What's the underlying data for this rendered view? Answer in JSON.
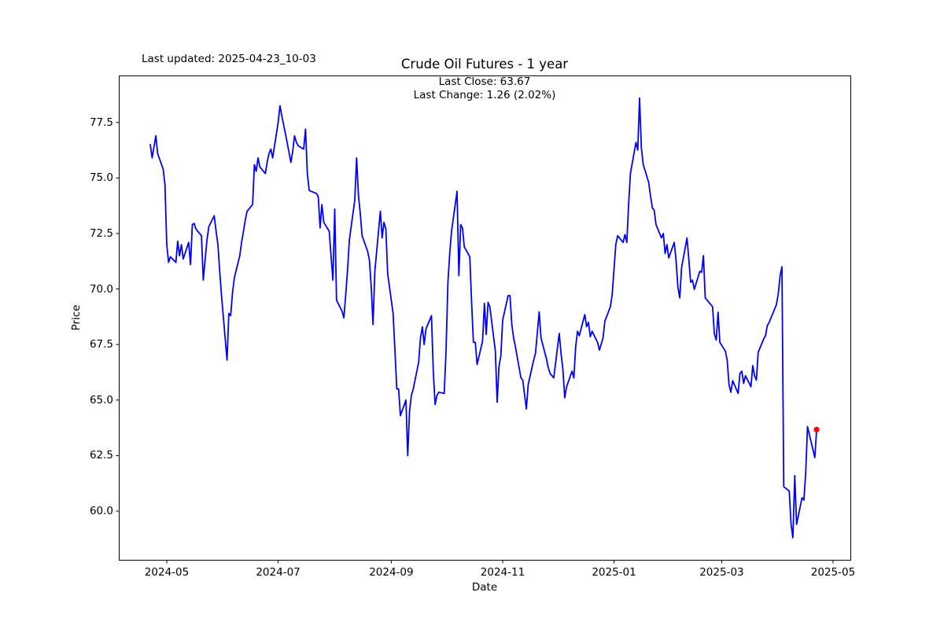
{
  "figure": {
    "last_updated": "Last updated: 2025-04-23_10-03",
    "background": "#ffffff"
  },
  "chart_data": {
    "type": "line",
    "title": "Crude Oil Futures - 1 year",
    "annotation": {
      "line1": "Last Close: 63.67",
      "line2": "Last Change: 1.26 (2.02%)"
    },
    "last_close": 63.67,
    "last_change": 1.26,
    "last_change_pct": "2.02%",
    "xlabel": "Date",
    "ylabel": "Price",
    "grid": false,
    "legend": null,
    "line_color": "#0000ff",
    "marker_color": "#ff0000",
    "axis_color": "#000000",
    "ylim": [
      57.8,
      79.6
    ],
    "yticks": [
      "60.0",
      "62.5",
      "65.0",
      "67.5",
      "70.0",
      "72.5",
      "75.0",
      "77.5"
    ],
    "xticks": [
      {
        "label": "2024-05",
        "date": "2024-05-01"
      },
      {
        "label": "2024-07",
        "date": "2024-07-01"
      },
      {
        "label": "2024-09",
        "date": "2024-09-01"
      },
      {
        "label": "2024-11",
        "date": "2024-11-01"
      },
      {
        "label": "2025-01",
        "date": "2025-01-01"
      },
      {
        "label": "2025-03",
        "date": "2025-03-01"
      },
      {
        "label": "2025-05",
        "date": "2025-05-01"
      }
    ],
    "series": [
      {
        "name": "price",
        "points": [
          [
            "2024-04-22",
            76.5
          ],
          [
            "2024-04-23",
            75.9
          ],
          [
            "2024-04-25",
            76.9
          ],
          [
            "2024-04-26",
            76.1
          ],
          [
            "2024-04-29",
            75.4
          ],
          [
            "2024-04-30",
            74.7
          ],
          [
            "2024-05-01",
            72.0
          ],
          [
            "2024-05-02",
            71.2
          ],
          [
            "2024-05-03",
            71.45
          ],
          [
            "2024-05-06",
            71.2
          ],
          [
            "2024-05-07",
            72.15
          ],
          [
            "2024-05-08",
            71.5
          ],
          [
            "2024-05-09",
            72.0
          ],
          [
            "2024-05-10",
            71.35
          ],
          [
            "2024-05-13",
            72.1
          ],
          [
            "2024-05-14",
            71.1
          ],
          [
            "2024-05-15",
            72.9
          ],
          [
            "2024-05-16",
            72.95
          ],
          [
            "2024-05-17",
            72.7
          ],
          [
            "2024-05-20",
            72.4
          ],
          [
            "2024-05-21",
            70.4
          ],
          [
            "2024-05-22",
            71.3
          ],
          [
            "2024-05-23",
            72.2
          ],
          [
            "2024-05-24",
            72.8
          ],
          [
            "2024-05-27",
            73.3
          ],
          [
            "2024-05-28",
            72.6
          ],
          [
            "2024-05-29",
            72.0
          ],
          [
            "2024-05-30",
            70.8
          ],
          [
            "2024-05-31",
            69.7
          ],
          [
            "2024-06-03",
            66.8
          ],
          [
            "2024-06-04",
            68.9
          ],
          [
            "2024-06-05",
            68.8
          ],
          [
            "2024-06-06",
            69.8
          ],
          [
            "2024-06-07",
            70.5
          ],
          [
            "2024-06-10",
            71.5
          ],
          [
            "2024-06-11",
            72.1
          ],
          [
            "2024-06-12",
            72.6
          ],
          [
            "2024-06-13",
            73.1
          ],
          [
            "2024-06-14",
            73.5
          ],
          [
            "2024-06-17",
            73.8
          ],
          [
            "2024-06-18",
            75.6
          ],
          [
            "2024-06-19",
            75.3
          ],
          [
            "2024-06-20",
            75.9
          ],
          [
            "2024-06-21",
            75.5
          ],
          [
            "2024-06-24",
            75.2
          ],
          [
            "2024-06-25",
            75.7
          ],
          [
            "2024-06-26",
            76.1
          ],
          [
            "2024-06-27",
            76.3
          ],
          [
            "2024-06-28",
            75.9
          ],
          [
            "2024-07-01",
            77.5
          ],
          [
            "2024-07-02",
            78.25
          ],
          [
            "2024-07-03",
            77.8
          ],
          [
            "2024-07-05",
            77.0
          ],
          [
            "2024-07-08",
            75.7
          ],
          [
            "2024-07-09",
            76.2
          ],
          [
            "2024-07-10",
            76.9
          ],
          [
            "2024-07-11",
            76.6
          ],
          [
            "2024-07-12",
            76.45
          ],
          [
            "2024-07-15",
            76.3
          ],
          [
            "2024-07-16",
            77.2
          ],
          [
            "2024-07-17",
            75.2
          ],
          [
            "2024-07-18",
            74.45
          ],
          [
            "2024-07-19",
            74.4
          ],
          [
            "2024-07-22",
            74.3
          ],
          [
            "2024-07-23",
            74.15
          ],
          [
            "2024-07-24",
            72.75
          ],
          [
            "2024-07-25",
            73.8
          ],
          [
            "2024-07-26",
            73.0
          ],
          [
            "2024-07-29",
            72.6
          ],
          [
            "2024-07-30",
            71.5
          ],
          [
            "2024-07-31",
            70.4
          ],
          [
            "2024-08-01",
            73.6
          ],
          [
            "2024-08-02",
            69.5
          ],
          [
            "2024-08-05",
            69.0
          ],
          [
            "2024-08-06",
            68.7
          ],
          [
            "2024-08-07",
            69.7
          ],
          [
            "2024-08-08",
            70.8
          ],
          [
            "2024-08-09",
            72.2
          ],
          [
            "2024-08-12",
            74.0
          ],
          [
            "2024-08-13",
            75.9
          ],
          [
            "2024-08-14",
            74.2
          ],
          [
            "2024-08-15",
            73.4
          ],
          [
            "2024-08-16",
            72.4
          ],
          [
            "2024-08-19",
            71.7
          ],
          [
            "2024-08-20",
            71.3
          ],
          [
            "2024-08-21",
            70.1
          ],
          [
            "2024-08-22",
            68.4
          ],
          [
            "2024-08-23",
            70.8
          ],
          [
            "2024-08-26",
            73.5
          ],
          [
            "2024-08-27",
            72.3
          ],
          [
            "2024-08-28",
            73.0
          ],
          [
            "2024-08-29",
            72.7
          ],
          [
            "2024-08-30",
            70.7
          ],
          [
            "2024-09-02",
            68.9
          ],
          [
            "2024-09-03",
            67.2
          ],
          [
            "2024-09-04",
            65.5
          ],
          [
            "2024-09-05",
            65.5
          ],
          [
            "2024-09-06",
            64.3
          ],
          [
            "2024-09-09",
            65.0
          ],
          [
            "2024-09-10",
            62.5
          ],
          [
            "2024-09-11",
            64.5
          ],
          [
            "2024-09-12",
            65.2
          ],
          [
            "2024-09-13",
            65.5
          ],
          [
            "2024-09-16",
            66.7
          ],
          [
            "2024-09-17",
            67.8
          ],
          [
            "2024-09-18",
            68.3
          ],
          [
            "2024-09-19",
            67.5
          ],
          [
            "2024-09-20",
            68.2
          ],
          [
            "2024-09-23",
            68.8
          ],
          [
            "2024-09-24",
            66.3
          ],
          [
            "2024-09-25",
            64.8
          ],
          [
            "2024-09-26",
            65.2
          ],
          [
            "2024-09-27",
            65.35
          ],
          [
            "2024-09-30",
            65.3
          ],
          [
            "2024-10-01",
            67.2
          ],
          [
            "2024-10-02",
            70.3
          ],
          [
            "2024-10-03",
            71.6
          ],
          [
            "2024-10-04",
            72.6
          ],
          [
            "2024-10-07",
            74.4
          ],
          [
            "2024-10-08",
            70.6
          ],
          [
            "2024-10-09",
            72.9
          ],
          [
            "2024-10-10",
            72.75
          ],
          [
            "2024-10-11",
            71.9
          ],
          [
            "2024-10-14",
            71.45
          ],
          [
            "2024-10-15",
            69.4
          ],
          [
            "2024-10-16",
            67.6
          ],
          [
            "2024-10-17",
            67.6
          ],
          [
            "2024-10-18",
            66.6
          ],
          [
            "2024-10-21",
            67.65
          ],
          [
            "2024-10-22",
            69.35
          ],
          [
            "2024-10-23",
            67.95
          ],
          [
            "2024-10-24",
            69.4
          ],
          [
            "2024-10-25",
            69.2
          ],
          [
            "2024-10-28",
            67.2
          ],
          [
            "2024-10-29",
            64.9
          ],
          [
            "2024-10-30",
            66.5
          ],
          [
            "2024-10-31",
            67.0
          ],
          [
            "2024-11-01",
            68.6
          ],
          [
            "2024-11-04",
            69.7
          ],
          [
            "2024-11-05",
            69.7
          ],
          [
            "2024-11-06",
            68.4
          ],
          [
            "2024-11-07",
            67.8
          ],
          [
            "2024-11-08",
            67.4
          ],
          [
            "2024-11-11",
            66.0
          ],
          [
            "2024-11-12",
            65.9
          ],
          [
            "2024-11-14",
            64.6
          ],
          [
            "2024-11-15",
            65.7
          ],
          [
            "2024-11-18",
            66.8
          ],
          [
            "2024-11-19",
            67.1
          ],
          [
            "2024-11-20",
            68.05
          ],
          [
            "2024-11-21",
            68.97
          ],
          [
            "2024-11-22",
            67.8
          ],
          [
            "2024-11-25",
            66.85
          ],
          [
            "2024-11-26",
            66.45
          ],
          [
            "2024-11-27",
            66.2
          ],
          [
            "2024-11-28",
            66.1
          ],
          [
            "2024-11-29",
            66.0
          ],
          [
            "2024-12-02",
            68.0
          ],
          [
            "2024-12-03",
            67.1
          ],
          [
            "2024-12-04",
            66.4
          ],
          [
            "2024-12-05",
            65.1
          ],
          [
            "2024-12-06",
            65.6
          ],
          [
            "2024-12-09",
            66.3
          ],
          [
            "2024-12-10",
            66.0
          ],
          [
            "2024-12-11",
            67.4
          ],
          [
            "2024-12-12",
            68.1
          ],
          [
            "2024-12-13",
            67.9
          ],
          [
            "2024-12-16",
            68.85
          ],
          [
            "2024-12-17",
            68.3
          ],
          [
            "2024-12-18",
            68.5
          ],
          [
            "2024-12-19",
            67.85
          ],
          [
            "2024-12-20",
            68.1
          ],
          [
            "2024-12-23",
            67.6
          ],
          [
            "2024-12-24",
            67.25
          ],
          [
            "2024-12-26",
            67.8
          ],
          [
            "2024-12-27",
            68.55
          ],
          [
            "2024-12-30",
            69.2
          ],
          [
            "2024-12-31",
            69.75
          ],
          [
            "2025-01-02",
            72.0
          ],
          [
            "2025-01-03",
            72.4
          ],
          [
            "2025-01-06",
            72.1
          ],
          [
            "2025-01-07",
            72.45
          ],
          [
            "2025-01-08",
            72.1
          ],
          [
            "2025-01-09",
            73.8
          ],
          [
            "2025-01-10",
            75.2
          ],
          [
            "2025-01-13",
            76.6
          ],
          [
            "2025-01-14",
            76.25
          ],
          [
            "2025-01-15",
            78.6
          ],
          [
            "2025-01-16",
            76.35
          ],
          [
            "2025-01-17",
            75.6
          ],
          [
            "2025-01-20",
            74.8
          ],
          [
            "2025-01-21",
            74.2
          ],
          [
            "2025-01-22",
            73.65
          ],
          [
            "2025-01-23",
            73.55
          ],
          [
            "2025-01-24",
            72.9
          ],
          [
            "2025-01-27",
            72.3
          ],
          [
            "2025-01-28",
            72.5
          ],
          [
            "2025-01-29",
            71.6
          ],
          [
            "2025-01-30",
            72.0
          ],
          [
            "2025-01-31",
            71.4
          ],
          [
            "2025-02-03",
            72.1
          ],
          [
            "2025-02-04",
            71.3
          ],
          [
            "2025-02-05",
            70.1
          ],
          [
            "2025-02-06",
            69.6
          ],
          [
            "2025-02-07",
            70.95
          ],
          [
            "2025-02-10",
            72.3
          ],
          [
            "2025-02-11",
            71.3
          ],
          [
            "2025-02-12",
            70.3
          ],
          [
            "2025-02-13",
            70.4
          ],
          [
            "2025-02-14",
            69.98
          ],
          [
            "2025-02-17",
            70.8
          ],
          [
            "2025-02-18",
            70.75
          ],
          [
            "2025-02-19",
            71.5
          ],
          [
            "2025-02-20",
            69.6
          ],
          [
            "2025-02-21",
            69.5
          ],
          [
            "2025-02-24",
            69.2
          ],
          [
            "2025-02-25",
            67.98
          ],
          [
            "2025-02-26",
            67.7
          ],
          [
            "2025-02-27",
            68.95
          ],
          [
            "2025-02-28",
            67.6
          ],
          [
            "2025-03-03",
            67.2
          ],
          [
            "2025-03-04",
            66.8
          ],
          [
            "2025-03-05",
            65.7
          ],
          [
            "2025-03-06",
            65.35
          ],
          [
            "2025-03-07",
            65.87
          ],
          [
            "2025-03-10",
            65.3
          ],
          [
            "2025-03-11",
            66.2
          ],
          [
            "2025-03-12",
            66.3
          ],
          [
            "2025-03-13",
            65.75
          ],
          [
            "2025-03-14",
            66.1
          ],
          [
            "2025-03-17",
            65.6
          ],
          [
            "2025-03-18",
            66.55
          ],
          [
            "2025-03-19",
            66.1
          ],
          [
            "2025-03-20",
            65.9
          ],
          [
            "2025-03-21",
            67.15
          ],
          [
            "2025-03-24",
            67.75
          ],
          [
            "2025-03-25",
            67.9
          ],
          [
            "2025-03-26",
            68.35
          ],
          [
            "2025-03-27",
            68.5
          ],
          [
            "2025-03-28",
            68.7
          ],
          [
            "2025-03-31",
            69.3
          ],
          [
            "2025-04-01",
            69.8
          ],
          [
            "2025-04-02",
            70.6
          ],
          [
            "2025-04-03",
            71.0
          ],
          [
            "2025-04-04",
            61.1
          ],
          [
            "2025-04-07",
            60.9
          ],
          [
            "2025-04-08",
            59.4
          ],
          [
            "2025-04-09",
            58.8
          ],
          [
            "2025-04-10",
            61.6
          ],
          [
            "2025-04-11",
            59.4
          ],
          [
            "2025-04-14",
            60.6
          ],
          [
            "2025-04-15",
            60.5
          ],
          [
            "2025-04-16",
            61.7
          ],
          [
            "2025-04-17",
            63.8
          ],
          [
            "2025-04-21",
            62.41
          ],
          [
            "2025-04-22",
            63.67
          ]
        ]
      }
    ]
  }
}
